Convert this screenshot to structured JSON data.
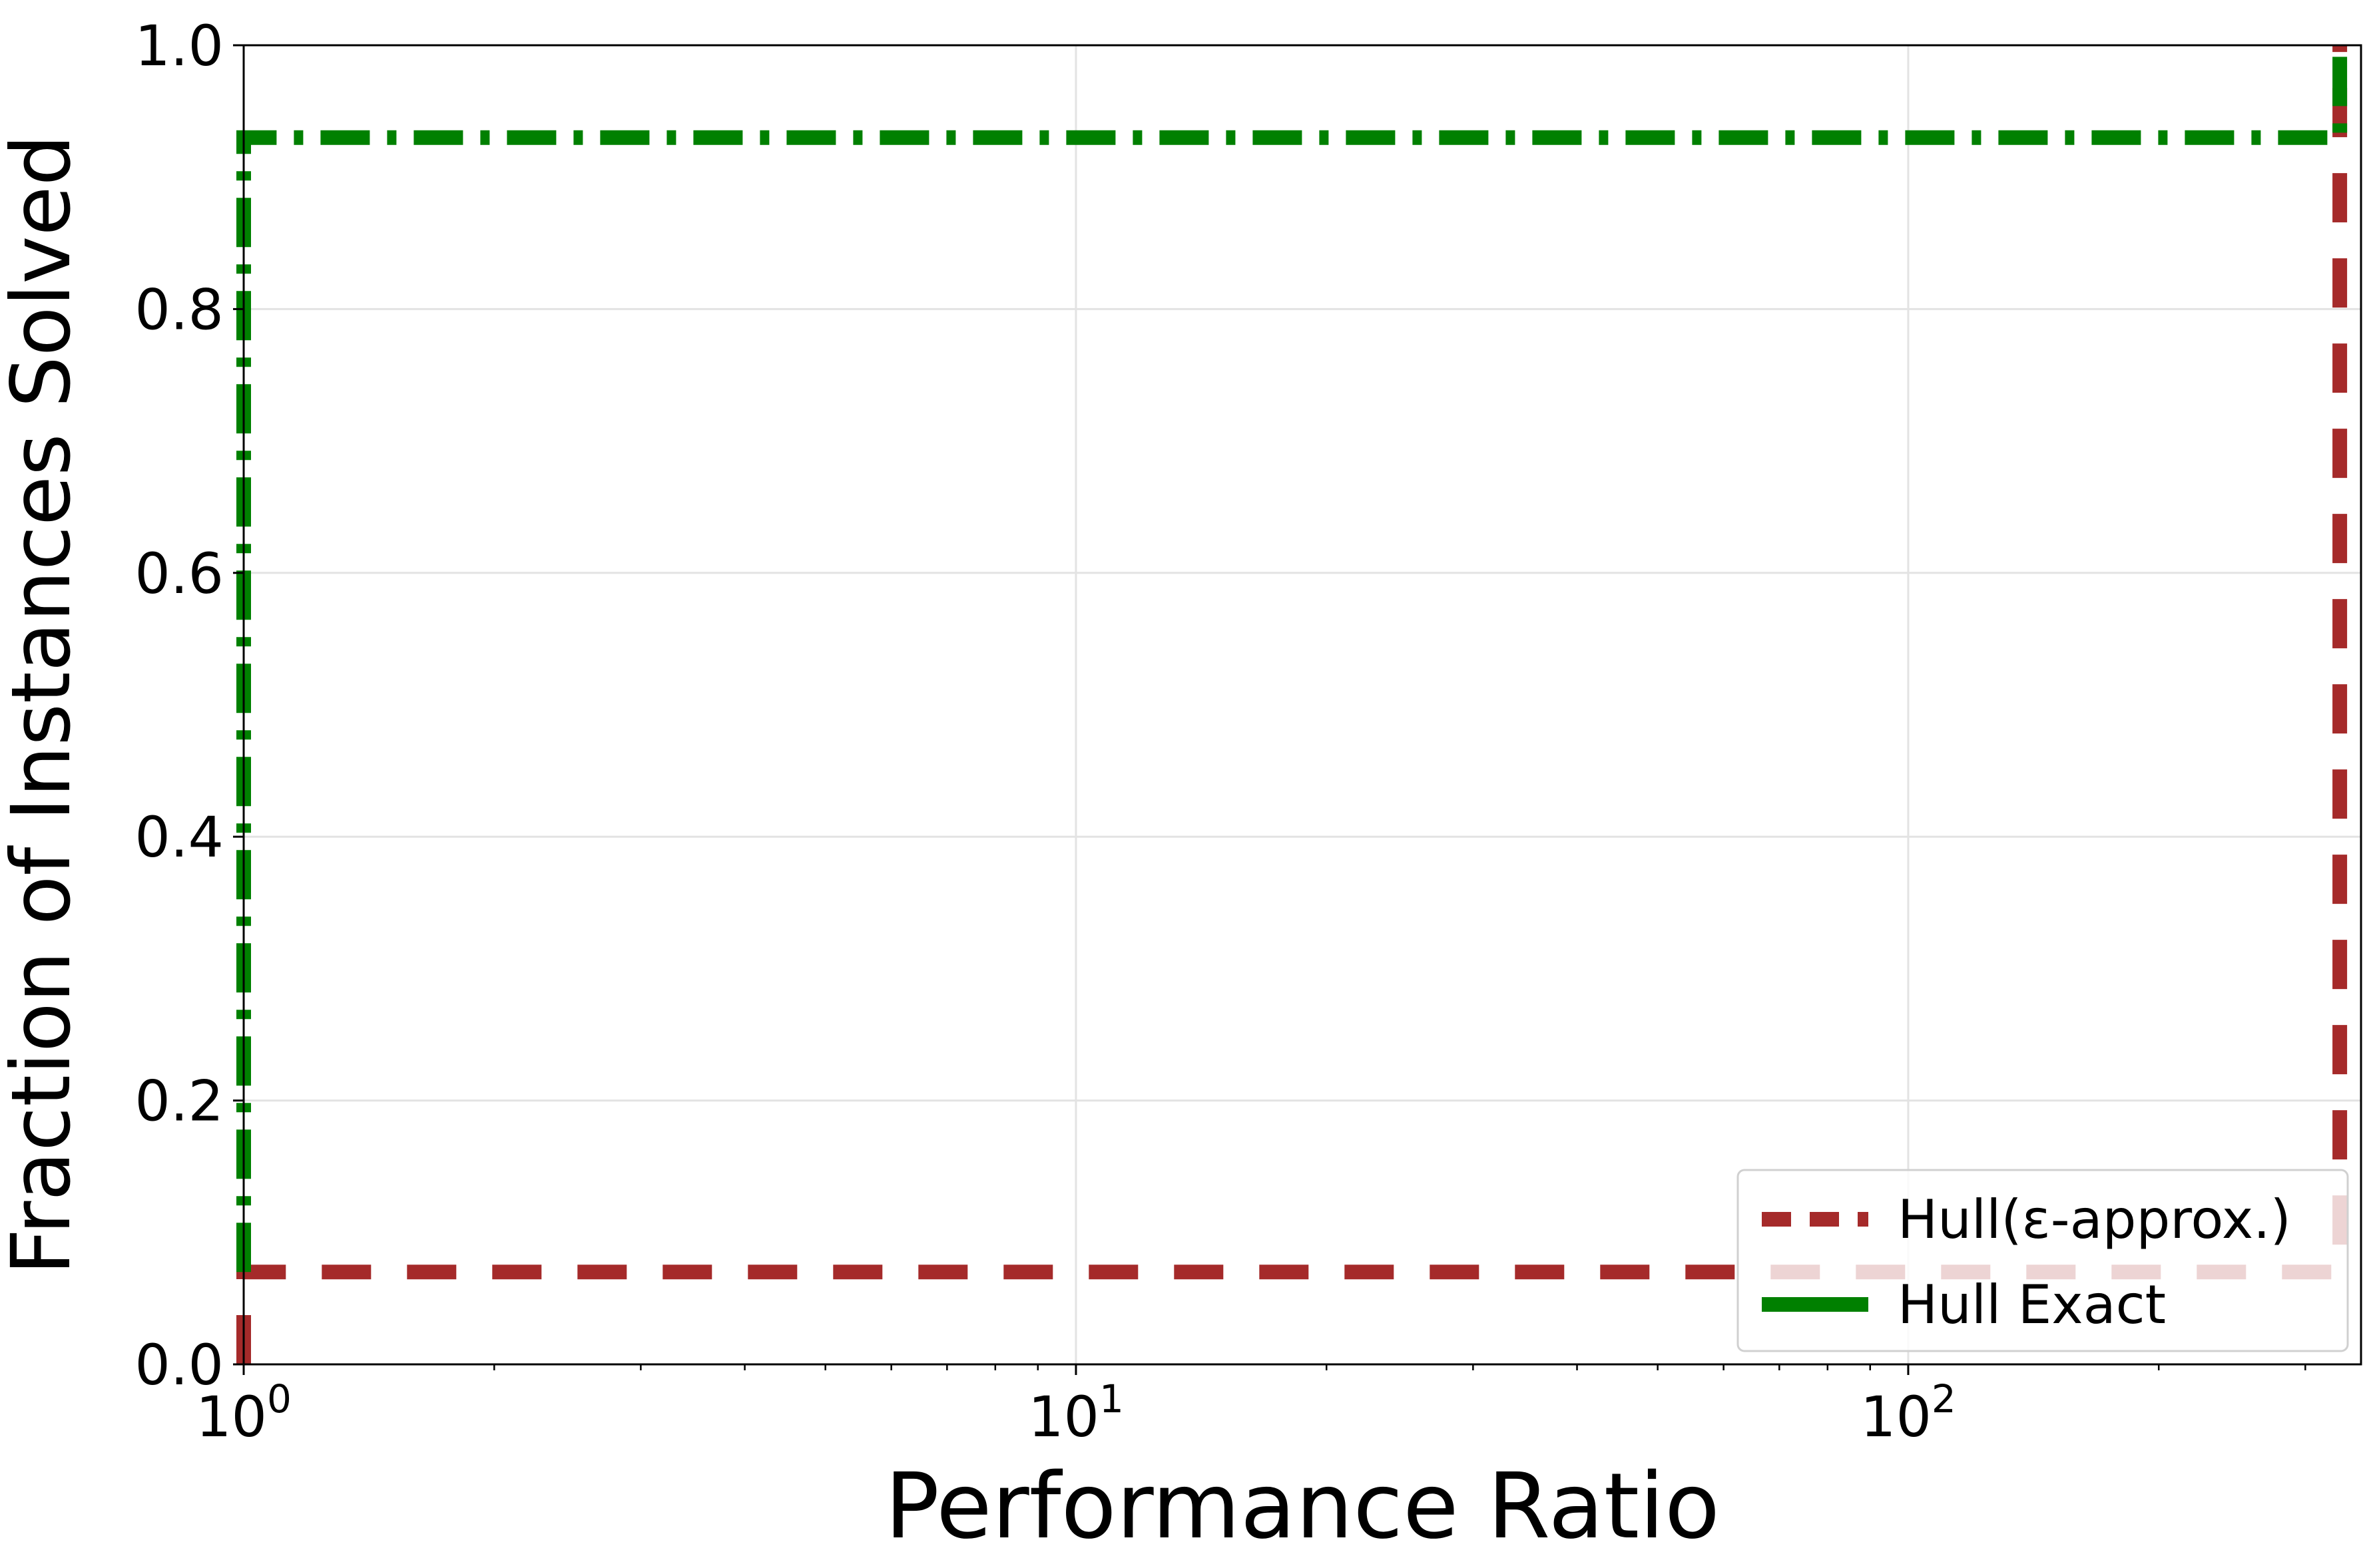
{
  "chart_data": {
    "type": "line",
    "title": "",
    "xlabel": "Performance Ratio",
    "ylabel": "Fraction of Instances Solved",
    "xscale": "log",
    "xlim": [
      1,
      350
    ],
    "ylim": [
      0,
      1
    ],
    "grid": true,
    "legend_position": "lower-right",
    "x_ticks": [
      {
        "value": 1,
        "base": "10",
        "exp": "0"
      },
      {
        "value": 10,
        "base": "10",
        "exp": "1"
      },
      {
        "value": 100,
        "base": "10",
        "exp": "2"
      }
    ],
    "y_ticks": [
      {
        "value": 0.0,
        "label": "0.0"
      },
      {
        "value": 0.2,
        "label": "0.2"
      },
      {
        "value": 0.4,
        "label": "0.4"
      },
      {
        "value": 0.6,
        "label": "0.6"
      },
      {
        "value": 0.8,
        "label": "0.8"
      },
      {
        "value": 1.0,
        "label": "1.0"
      }
    ],
    "series": [
      {
        "name": "Hull(ε-approx.)",
        "color": "#a52a2a",
        "style": "dashed",
        "x": [
          1,
          1,
          330,
          330
        ],
        "y": [
          0.0,
          0.07,
          0.07,
          1.0
        ]
      },
      {
        "name": "Hull Exact",
        "color": "#008000",
        "style": "dashdot",
        "x": [
          1,
          1,
          330,
          330
        ],
        "y": [
          0.07,
          0.93,
          0.93,
          1.0
        ]
      }
    ]
  }
}
